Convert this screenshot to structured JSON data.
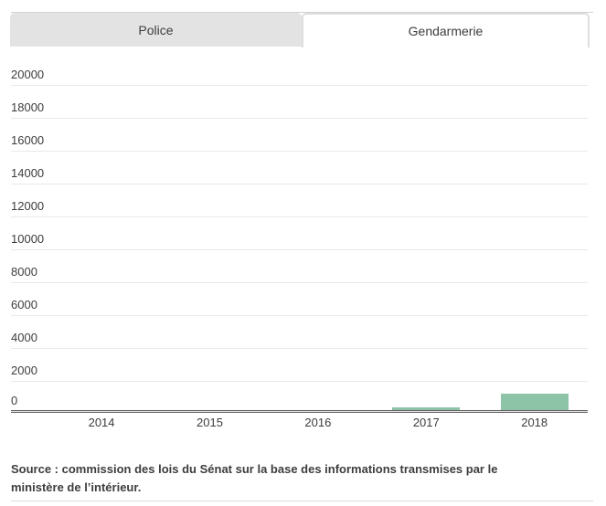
{
  "tabs": {
    "items": [
      {
        "label": "Police",
        "active": false
      },
      {
        "label": "Gendarmerie",
        "active": true
      }
    ]
  },
  "chart_data": {
    "type": "bar",
    "title": "",
    "categories": [
      "2014",
      "2015",
      "2016",
      "2017",
      "2018"
    ],
    "series": [
      {
        "name": "Gendarmerie",
        "values": [
          0,
          0,
          0,
          150,
          1000
        ]
      }
    ],
    "xlabel": "",
    "ylabel": "",
    "ylim": [
      0,
      20000
    ],
    "ytick_step": 2000,
    "yticks": [
      20000,
      18000,
      16000,
      14000,
      12000,
      10000,
      8000,
      6000,
      4000,
      2000,
      0
    ],
    "grid": true,
    "legend": "none",
    "bar_color": "#8dc3a6"
  },
  "footer": {
    "source_text": "Source : commission des lois du Sénat sur la base des informations transmises par le ministère de l’intérieur."
  },
  "colors": {
    "bar": "#8dc3a6",
    "inactive_tab_bg": "#e3e3e3",
    "active_tab_border": "#dedede",
    "grid_line": "#e9e9e9",
    "axis_line": "#606060",
    "text": "#3d3d3d"
  }
}
